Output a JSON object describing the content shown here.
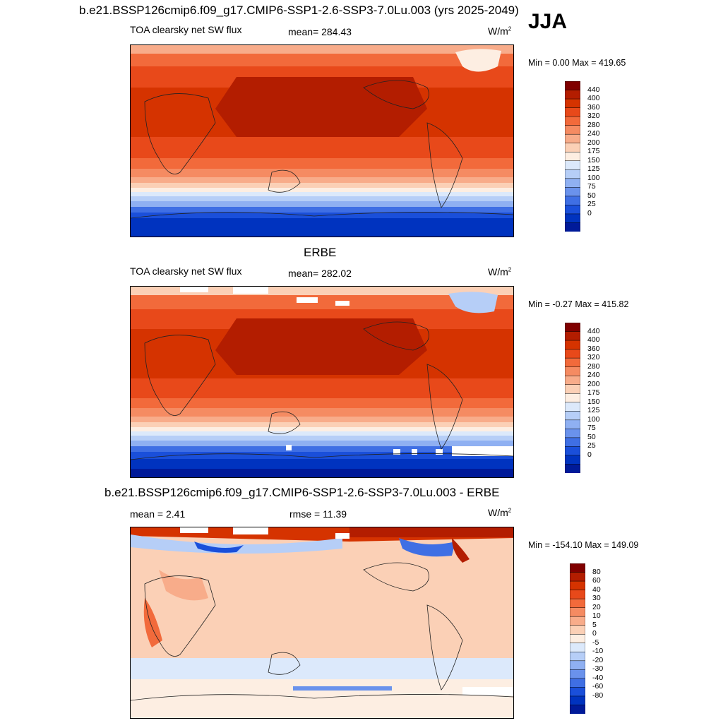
{
  "main_title": "b.e21.BSSP126cmip6.f09_g17.CMIP6-SSP1-2.6-SSP3-7.0Lu.003 (yrs 2025-2049)",
  "season": "JJA",
  "panels": [
    {
      "header": "",
      "left_label": "TOA clearsky net SW flux",
      "center_label": "mean= 284.43",
      "units": "W/m",
      "units_sup": "2",
      "minmax": "Min =   0.00 Max = 419.65"
    },
    {
      "header": "ERBE",
      "left_label": "TOA clearsky net SW flux",
      "center_label": "mean= 282.02",
      "units": "W/m",
      "units_sup": "2",
      "minmax": "Min =  -0.27 Max = 415.82"
    },
    {
      "header": "b.e21.BSSP126cmip6.f09_g17.CMIP6-SSP1-2.6-SSP3-7.0Lu.003 - ERBE",
      "left_label": "mean =   2.41",
      "center_label": "rmse =  11.39",
      "units": "W/m",
      "units_sup": "2",
      "minmax": "Min = -154.10 Max = 149.09"
    }
  ],
  "colorbars": {
    "field": {
      "labels": [
        "440",
        "400",
        "360",
        "320",
        "280",
        "240",
        "200",
        "175",
        "150",
        "125",
        "100",
        "75",
        "50",
        "25",
        "0"
      ],
      "colors": [
        "#800000",
        "#b31d00",
        "#d53300",
        "#e8491a",
        "#f26a3b",
        "#f58b62",
        "#f8ac8a",
        "#fbd0b6",
        "#fdeee2",
        "#dce9fb",
        "#b6cef7",
        "#8fb0f2",
        "#6a92ec",
        "#3f6fe4",
        "#1a4fda",
        "#0033bf",
        "#001a99"
      ]
    },
    "diff": {
      "labels": [
        "80",
        "60",
        "40",
        "30",
        "20",
        "10",
        "5",
        "0",
        "-5",
        "-10",
        "-20",
        "-30",
        "-40",
        "-60",
        "-80"
      ],
      "colors": [
        "#800000",
        "#b31d00",
        "#d53300",
        "#e8491a",
        "#f26a3b",
        "#f58b62",
        "#f8ac8a",
        "#fbd0b6",
        "#fdeee2",
        "#dce9fb",
        "#b6cef7",
        "#8fb0f2",
        "#6a92ec",
        "#3f6fe4",
        "#1a4fda",
        "#0033bf",
        "#001a99"
      ]
    }
  }
}
